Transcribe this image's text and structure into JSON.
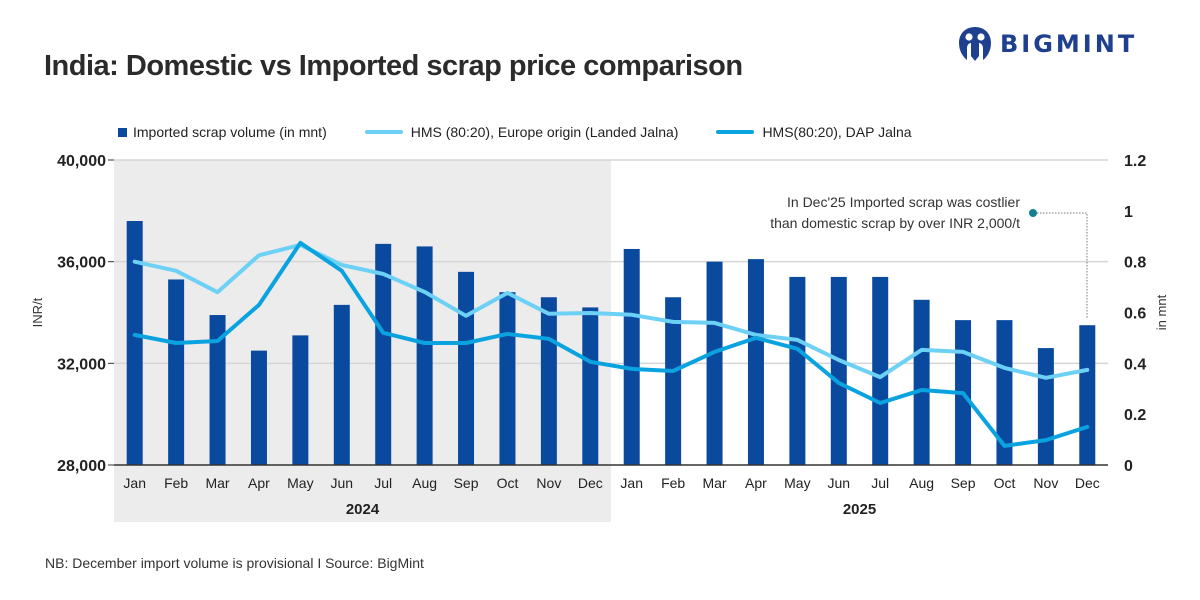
{
  "header": {
    "title": "India: Domestic vs Imported scrap price comparison",
    "brand": "BIGMINT"
  },
  "legend": [
    {
      "label": "Imported scrap volume (in mnt)",
      "type": "box",
      "color": "#0a4a9e"
    },
    {
      "label": "HMS (80:20), Europe origin (Landed Jalna)",
      "type": "line",
      "color": "#6dd0f5"
    },
    {
      "label": "HMS(80:20), DAP Jalna",
      "type": "line",
      "color": "#0aa3e0"
    }
  ],
  "annotation": {
    "line1": "In Dec'25 Imported scrap was costlier",
    "line2": "than domestic scrap by over INR 2,000/t",
    "dot_color": "#137f8f"
  },
  "footnote": "NB: December import volume is provisional  I  Source: BigMint",
  "chart_data": {
    "type": "bar+line",
    "title": "India: Domestic vs Imported scrap price comparison",
    "categories": [
      "Jan",
      "Feb",
      "Mar",
      "Apr",
      "May",
      "Jun",
      "Jul",
      "Aug",
      "Sep",
      "Oct",
      "Nov",
      "Dec",
      "Jan",
      "Feb",
      "Mar",
      "Apr",
      "May",
      "Jun",
      "Jul",
      "Aug",
      "Sep",
      "Oct",
      "Nov",
      "Dec"
    ],
    "groups": [
      {
        "label": "2024",
        "start": 0,
        "end": 11,
        "shaded": true
      },
      {
        "label": "2025",
        "start": 12,
        "end": 23,
        "shaded": false
      }
    ],
    "ylabel_left": "INR/t",
    "ylabel_right": "in mnt",
    "ylim_left": [
      28000,
      40000
    ],
    "ylim_right": [
      0,
      1.2
    ],
    "yticks_left": [
      "28,000",
      "32,000",
      "36,000",
      "40,000"
    ],
    "yticks_left_values": [
      28000,
      32000,
      36000,
      40000
    ],
    "yticks_right": [
      "0",
      "0.2",
      "0.4",
      "0.6",
      "0.8",
      "1",
      "1.2"
    ],
    "yticks_right_values": [
      0,
      0.2,
      0.4,
      0.6,
      0.8,
      1.0,
      1.2
    ],
    "grid": true,
    "legend_position": "top-left",
    "series": [
      {
        "name": "Imported scrap volume (in mnt)",
        "type": "bar",
        "axis": "right",
        "color": "#0a4a9e",
        "values": [
          0.96,
          0.73,
          0.59,
          0.45,
          0.51,
          0.63,
          0.87,
          0.86,
          0.76,
          0.68,
          0.66,
          0.62,
          0.85,
          0.66,
          0.8,
          0.81,
          0.74,
          0.74,
          0.74,
          0.65,
          0.57,
          0.57,
          0.46,
          0.55
        ]
      },
      {
        "name": "HMS (80:20), Europe origin (Landed Jalna)",
        "type": "line",
        "axis": "left",
        "color": "#6dd0f5",
        "values": [
          36000,
          35640,
          34800,
          36250,
          36660,
          35870,
          35520,
          34810,
          33870,
          34770,
          33950,
          33980,
          33910,
          33630,
          33590,
          33120,
          32920,
          32130,
          31460,
          32530,
          32450,
          31820,
          31430,
          31740
        ]
      },
      {
        "name": "HMS(80:20), DAP Jalna",
        "type": "line",
        "axis": "left",
        "color": "#0aa3e0",
        "values": [
          33120,
          32800,
          32880,
          34300,
          36740,
          35640,
          33200,
          32800,
          32800,
          33160,
          32960,
          32060,
          31780,
          31700,
          32450,
          33000,
          32570,
          31230,
          30440,
          30950,
          30830,
          28750,
          28980,
          29500
        ]
      }
    ],
    "annotations": [
      {
        "text": "In Dec'25 Imported scrap was costlier than domestic scrap by over INR 2,000/t",
        "points_to": "Dec 2025"
      }
    ]
  }
}
